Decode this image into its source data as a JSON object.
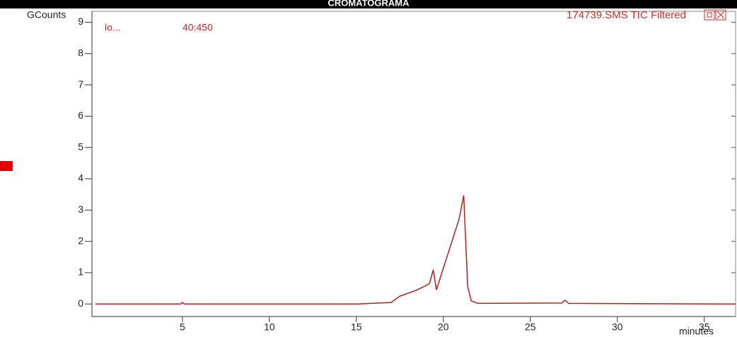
{
  "chart_data": {
    "type": "line",
    "title": "CROMATOGRAMA",
    "y_label": "GCounts",
    "x_label": "minutes",
    "trace_label": "174739.SMS TIC Filtered",
    "ion_label": "lo...",
    "mass_range": "40:450",
    "x": [
      0,
      4.9,
      5.0,
      5.1,
      10,
      15,
      17,
      17.5,
      18.5,
      19.2,
      19.42,
      19.6,
      20.9,
      21.17,
      21.4,
      21.6,
      22,
      26.8,
      27,
      27.2,
      36.8
    ],
    "series": [
      {
        "color": "#b02020",
        "values": [
          0,
          0,
          0.05,
          0,
          0,
          0,
          0.05,
          0.25,
          0.45,
          0.65,
          1.09,
          0.45,
          2.7,
          3.47,
          0.57,
          0.1,
          0.02,
          0.03,
          0.12,
          0.02,
          0
        ]
      }
    ],
    "xlim": [
      -0.2,
      36.8
    ],
    "ylim": [
      -0.4,
      9.35
    ],
    "xticks": [
      5,
      10,
      15,
      20,
      25,
      30,
      35
    ],
    "yticks": [
      0,
      1,
      2,
      3,
      4,
      5,
      6,
      7,
      8,
      9
    ]
  }
}
